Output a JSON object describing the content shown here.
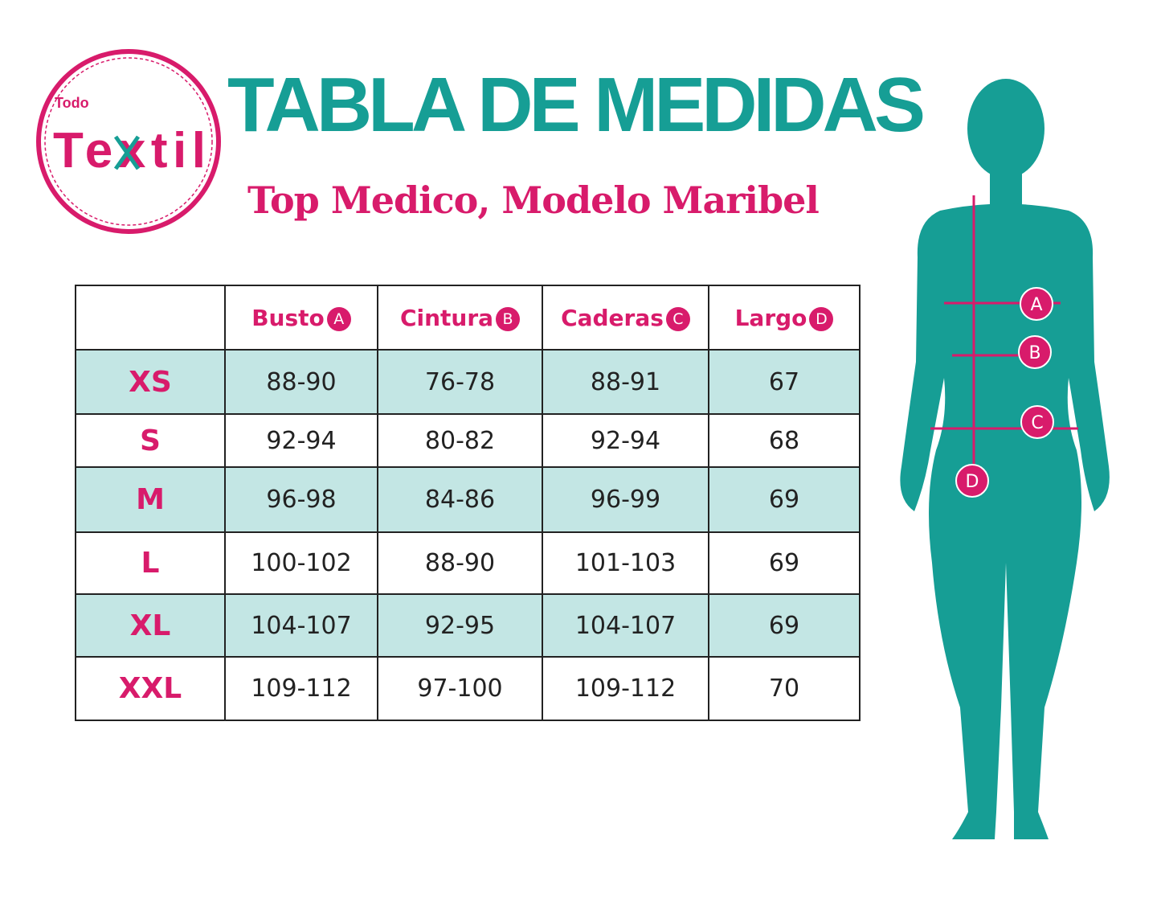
{
  "logo": {
    "small_text": "Todo",
    "main_text": "Textil",
    "icon": "scissors-icon"
  },
  "header": {
    "title": "TABLA DE MEDIDAS",
    "subtitle": "Top Medico, Modelo Maribel"
  },
  "colors": {
    "pink": "#d81b6b",
    "teal": "#169e95",
    "row_highlight": "#c3e6e4"
  },
  "table": {
    "columns": [
      {
        "label": "Busto",
        "marker": "A"
      },
      {
        "label": "Cintura",
        "marker": "B"
      },
      {
        "label": "Caderas",
        "marker": "C"
      },
      {
        "label": "Largo",
        "marker": "D"
      }
    ],
    "rows": [
      {
        "size": "XS",
        "values": [
          "88-90",
          "76-78",
          "88-91",
          "67"
        ]
      },
      {
        "size": "S",
        "values": [
          "92-94",
          "80-82",
          "92-94",
          "68"
        ]
      },
      {
        "size": "M",
        "values": [
          "96-98",
          "84-86",
          "96-99",
          "69"
        ]
      },
      {
        "size": "L",
        "values": [
          "100-102",
          "88-90",
          "101-103",
          "69"
        ]
      },
      {
        "size": "XL",
        "values": [
          "104-107",
          "92-95",
          "104-107",
          "69"
        ]
      },
      {
        "size": "XXL",
        "values": [
          "109-112",
          "97-100",
          "109-112",
          "70"
        ]
      }
    ]
  },
  "figure": {
    "markers": [
      "A",
      "B",
      "C",
      "D"
    ]
  }
}
